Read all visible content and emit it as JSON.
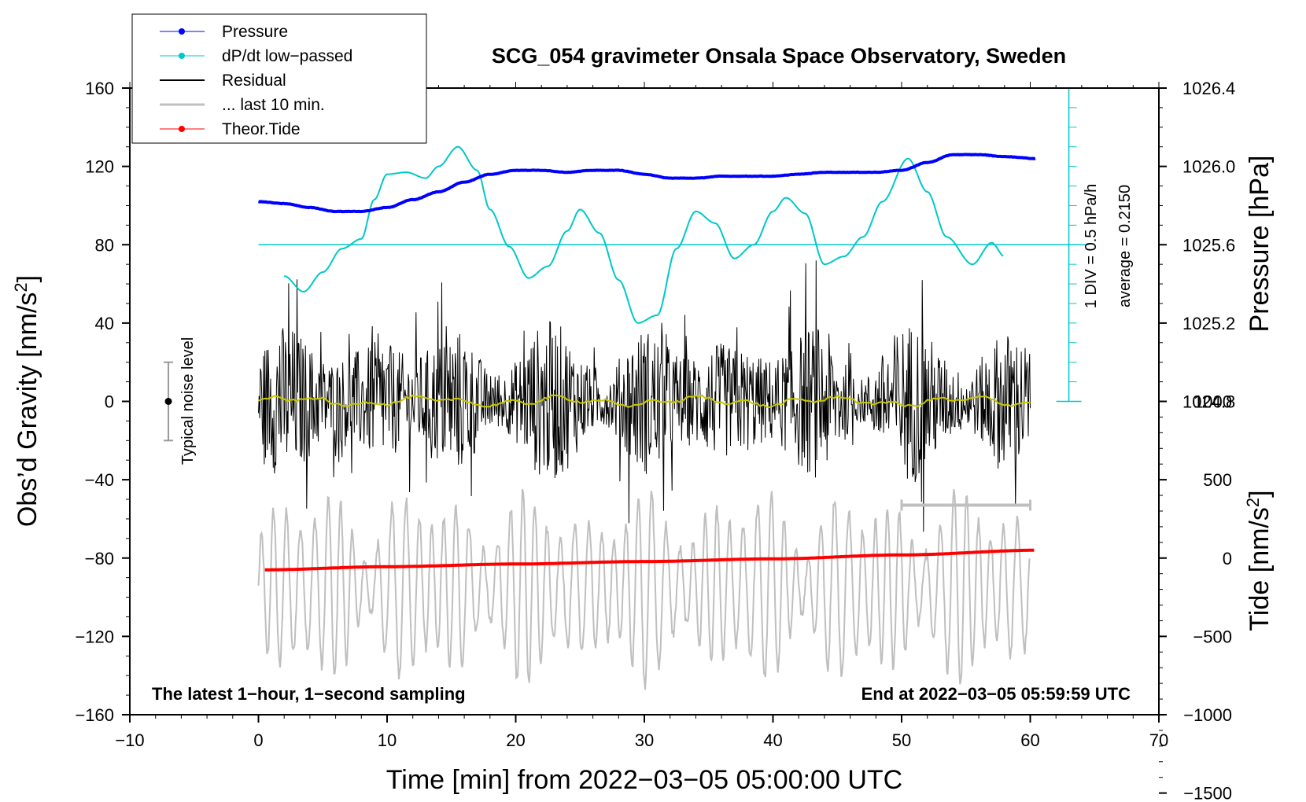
{
  "chart_data": {
    "type": "line",
    "title": "SCG_054 gravimeter Onsala Space Observatory, Sweden",
    "xlabel": "Time [min] from 2022−03−05 05:00:00 UTC",
    "ylabel": "Obs’d Gravity [nm/s",
    "ylabel_sup": "2",
    "ylabel_close": "]",
    "y2label": "Pressure [hPa]",
    "y3label": "Tide [nm/s",
    "y3label_sup": "2",
    "y3label_close": "]",
    "xlim": [
      -10,
      70
    ],
    "ylim": [
      -160,
      160
    ],
    "x_ticks": [
      -10,
      0,
      10,
      20,
      30,
      40,
      50,
      60,
      70
    ],
    "x_tick_labels": [
      "−10",
      "0",
      "10",
      "20",
      "30",
      "40",
      "50",
      "60",
      "70"
    ],
    "y_ticks": [
      -160,
      -120,
      -80,
      -40,
      0,
      40,
      80,
      120,
      160
    ],
    "y_tick_labels": [
      "−160",
      "−120",
      "−80",
      "−40",
      "0",
      "40",
      "80",
      "120",
      "160"
    ],
    "pressure_ticks": [
      1024.8,
      1025.2,
      1025.6,
      1026.0,
      1026.4
    ],
    "pressure_tick_labels": [
      "1024.8",
      "1025.2",
      "1025.6",
      "1026.0",
      "1026.4"
    ],
    "pressure_map": {
      "p0": 1025.6,
      "y0": 80,
      "hpa_per_nms2": 0.01
    },
    "tide_ticks": [
      -1500,
      -1000,
      -500,
      0,
      500,
      1000
    ],
    "tide_tick_labels": [
      "−1500",
      "−1000",
      "−500",
      "0",
      "500",
      "1000"
    ],
    "tide_map": {
      "t0": 0,
      "y0": -80,
      "units_per_nms2": 12.5
    },
    "dpdt_scale": {
      "div_label": "1 DIV = 0.5 hPa/h",
      "average_label": "average = 0.2150",
      "baseline_y": 80,
      "x": 63
    },
    "noise_label": "Typical noise level",
    "noise_bar": {
      "x": -7,
      "center": 0,
      "half_range": 20
    },
    "grey_scale_bar": {
      "x_start": 50,
      "x_end": 60,
      "y": -53
    },
    "annotation_left": "The latest 1−hour, 1−second sampling",
    "annotation_right": "End at 2022−03−05 05:59:59 UTC",
    "legend": [
      {
        "label": "Pressure",
        "color": "#0000ff",
        "marker": true,
        "lw": 1
      },
      {
        "label": "dP/dt low−passed",
        "color": "#00c8c8",
        "marker": true,
        "lw": 1
      },
      {
        "label": "Residual",
        "color": "#000000",
        "marker": false,
        "lw": 2
      },
      {
        "label": "... last 10 min.",
        "color": "#bfbfbf",
        "marker": false,
        "lw": 3
      },
      {
        "label": "Theor.Tide",
        "color": "#ff0000",
        "marker": true,
        "lw": 1
      }
    ],
    "series": [
      {
        "name": "Pressure",
        "axis": "pressure_hpa",
        "color": "#0000ff",
        "x": [
          0,
          2,
          4,
          6,
          8,
          10,
          12,
          14,
          16,
          18,
          20,
          22,
          24,
          26,
          28,
          30,
          32,
          34,
          36,
          38,
          40,
          42,
          44,
          46,
          48,
          50,
          52,
          54,
          56,
          58,
          60.5
        ],
        "y": [
          1025.82,
          1025.81,
          1025.79,
          1025.77,
          1025.77,
          1025.79,
          1025.83,
          1025.87,
          1025.92,
          1025.96,
          1025.98,
          1025.98,
          1025.97,
          1025.98,
          1025.98,
          1025.96,
          1025.94,
          1025.94,
          1025.95,
          1025.95,
          1025.95,
          1025.96,
          1025.97,
          1025.97,
          1025.97,
          1025.98,
          1026.02,
          1026.06,
          1026.06,
          1026.05,
          1026.04
        ]
      },
      {
        "name": "dP/dt low−passed",
        "axis": "gravity",
        "color": "#00c8c8",
        "x": [
          2,
          3.5,
          5,
          6.5,
          8,
          9,
          10,
          11.5,
          13,
          14,
          15.5,
          17,
          18,
          19.5,
          21,
          22.5,
          24,
          25,
          26.5,
          28,
          29.5,
          31,
          32.5,
          34,
          35.5,
          37,
          38.5,
          40,
          41,
          42.5,
          44,
          45.5,
          47,
          48.5,
          50.5,
          52,
          53.5,
          55.5,
          57,
          58
        ],
        "y": [
          64,
          56,
          66,
          78,
          83,
          103,
          116,
          117,
          114,
          120,
          130,
          118,
          98,
          79,
          63,
          69,
          87,
          98,
          86,
          62,
          40,
          44,
          78,
          97,
          91,
          73,
          80,
          97,
          104,
          96,
          70,
          74,
          84,
          102,
          124,
          107,
          84,
          70,
          81,
          74
        ]
      },
      {
        "name": "Residual",
        "axis": "gravity",
        "color": "#000000",
        "x_range": [
          0,
          60
        ],
        "amplitude": 30
      },
      {
        "name": "... last 10 min.",
        "axis": "gravity",
        "color": "#bfbfbf",
        "x_range": [
          0,
          60
        ],
        "offset": -95,
        "amplitude": 40
      },
      {
        "name": "Theor.Tide",
        "axis": "tide",
        "color": "#ff0000",
        "x": [
          0.5,
          10,
          20,
          30,
          40,
          50,
          60.5
        ],
        "y": [
          -75,
          -55,
          -38,
          -22,
          -5,
          20,
          50
        ]
      }
    ]
  }
}
